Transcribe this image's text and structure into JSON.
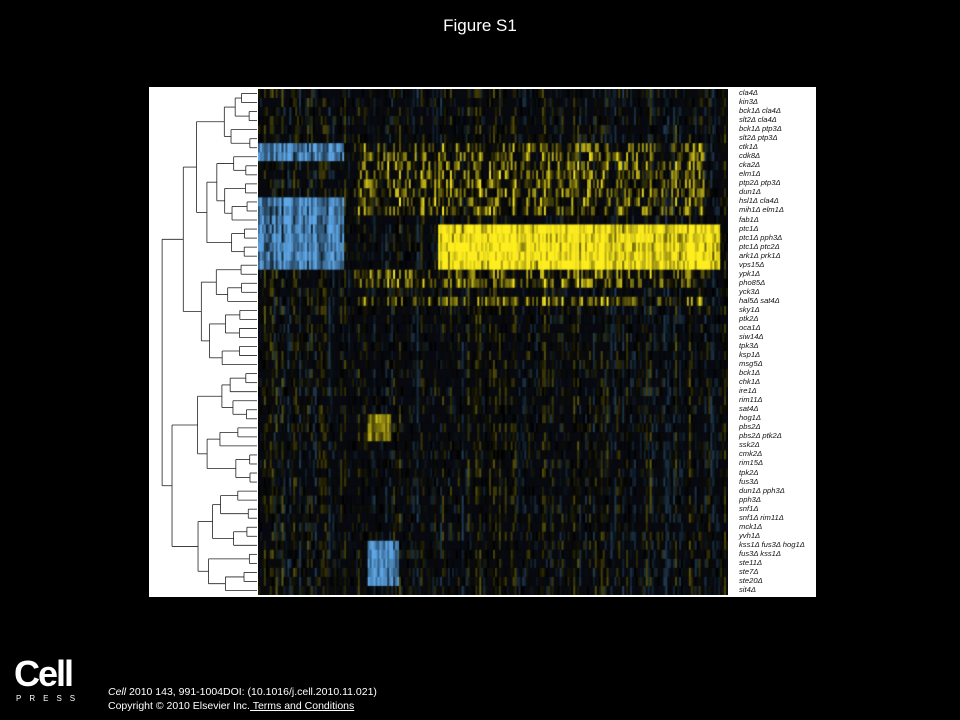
{
  "page": {
    "title": "Figure S1",
    "citation_line": "Cell 2010 143, 991-1004DOI: (10.1016/j.cell.2010.11.021)",
    "journal_name": "Cell",
    "citation_rest": " 2010 143, 991-1004DOI: (10.1016/j.cell.2010.11.021)",
    "copyright": "Copyright © 2010 Elsevier Inc.",
    "terms_link": " Terms and Conditions",
    "logo_word": "Cell",
    "logo_press": "PRESS"
  },
  "colors": {
    "background": "#000000",
    "panel": "#ffffff",
    "positive": "#ffee33",
    "negative": "#5fa8e8",
    "zero": "#000000"
  },
  "chart_data": {
    "type": "heatmap",
    "row_labels": [
      "cla4Δ",
      "kin3Δ",
      "bck1Δ cla4Δ",
      "slt2Δ cla4Δ",
      "bck1Δ ptp3Δ",
      "slt2Δ ptp3Δ",
      "ctk1Δ",
      "cdk8Δ",
      "cka2Δ",
      "elm1Δ",
      "ptp2Δ ptp3Δ",
      "dun1Δ",
      "hsl1Δ cla4Δ",
      "mih1Δ elm1Δ",
      "fab1Δ",
      "ptc1Δ",
      "ptc1Δ pph3Δ",
      "ptc1Δ ptc2Δ",
      "ark1Δ prk1Δ",
      "vps15Δ",
      "ypk1Δ",
      "pho85Δ",
      "yck3Δ",
      "hal5Δ sat4Δ",
      "sky1Δ",
      "ptk2Δ",
      "oca1Δ",
      "siw14Δ",
      "tpk3Δ",
      "ksp1Δ",
      "msg5Δ",
      "bck1Δ",
      "chk1Δ",
      "ire1Δ",
      "rim11Δ",
      "sat4Δ",
      "hog1Δ",
      "pbs2Δ",
      "pbs2Δ ptk2Δ",
      "ssk2Δ",
      "cmk2Δ",
      "rim15Δ",
      "tpk2Δ",
      "fus3Δ",
      "dun1Δ pph3Δ",
      "pph3Δ",
      "snf1Δ",
      "snf1Δ rim11Δ",
      "mck1Δ",
      "yvh1Δ",
      "kss1Δ fus3Δ hog1Δ",
      "fus3Δ kss1Δ",
      "ste11Δ",
      "ste7Δ",
      "ste20Δ",
      "sit4Δ"
    ],
    "column_count": 240,
    "color_scale": [
      "blue (down)",
      "black (no change)",
      "yellow (up)"
    ]
  }
}
